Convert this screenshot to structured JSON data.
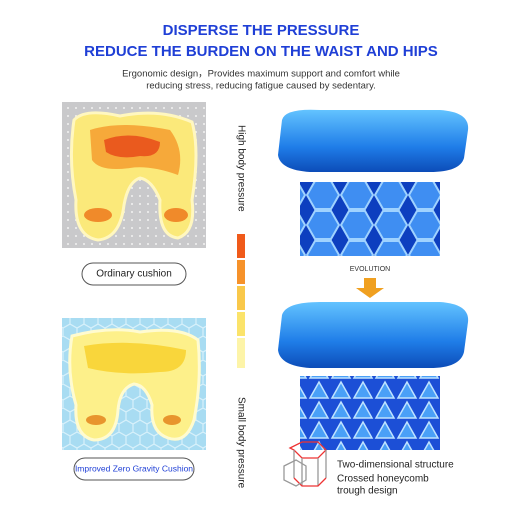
{
  "header": {
    "title": "DISPERSE THE PRESSURE",
    "subtitle": "REDUCE THE BURDEN ON THE WAIST AND HIPS",
    "description": [
      "Ergonomic design，Provides maximum support and comfort while",
      "reducing stress, reducing fatigue caused by sedentary."
    ]
  },
  "left": {
    "ordinary_label": "Ordinary cushion",
    "improved_label": "Improved Zero Gravity Cushion"
  },
  "scale": {
    "high": "High body pressure",
    "low": "Small body pressure"
  },
  "right": {
    "evolution": "EVOLUTION",
    "structure": "Two-dimensional structure",
    "design": [
      "Crossed honeycomb",
      "trough design"
    ]
  }
}
